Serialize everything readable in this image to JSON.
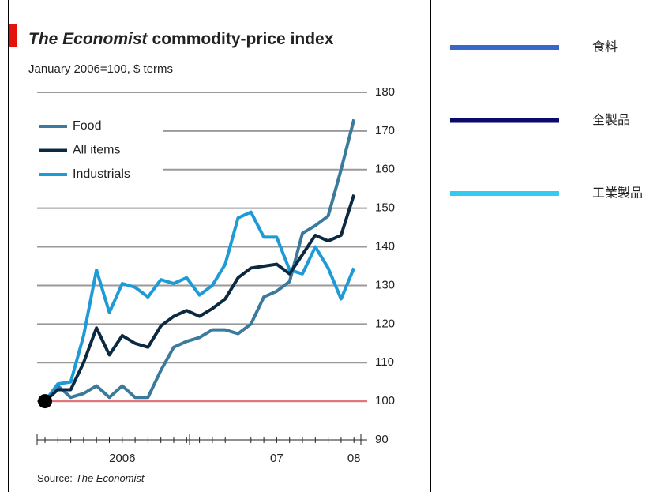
{
  "chart_data": {
    "type": "line",
    "title_parts": [
      "The Economist",
      "commodity-price index"
    ],
    "subtitle": "January 2006=100, $ terms",
    "source_parts": [
      "Source:",
      "The Economist"
    ],
    "categories": [
      null,
      null,
      null,
      null,
      null,
      null,
      "2006",
      null,
      null,
      null,
      null,
      null,
      null,
      null,
      null,
      null,
      null,
      null,
      "07",
      null,
      null,
      null,
      null,
      null,
      "08"
    ],
    "series": [
      {
        "name": "Food",
        "color": "#3a7a9c",
        "values": [
          100,
          104,
          101,
          102,
          104,
          101,
          104,
          101,
          101,
          108,
          114,
          115.5,
          116.5,
          118.5,
          118.5,
          117.5,
          120,
          127,
          128.5,
          131,
          143.5,
          145.5,
          148,
          160,
          173
        ]
      },
      {
        "name": "All items",
        "color": "#0b2a42",
        "values": [
          100,
          103,
          103,
          110,
          119,
          112,
          117,
          115,
          114,
          119.5,
          122,
          123.5,
          122,
          124,
          126.5,
          132,
          134.5,
          135,
          135.5,
          133,
          138,
          143,
          141.5,
          143,
          153.5
        ]
      },
      {
        "name": "Industrials",
        "color": "#1e9ad6",
        "values": [
          100,
          104.5,
          105,
          117,
          134,
          123,
          130.5,
          129.5,
          127,
          131.5,
          130.5,
          132,
          127.5,
          130,
          135.5,
          147.5,
          149,
          142.5,
          142.5,
          134,
          133,
          140,
          134.5,
          126.5,
          134.5
        ]
      }
    ],
    "ylim": [
      90,
      180
    ],
    "yticks": [
      90,
      100,
      110,
      120,
      130,
      140,
      150,
      160,
      170,
      180
    ],
    "baseline": 100,
    "baseline_color": "#e8707a",
    "grid": true,
    "legend": "upper left"
  },
  "side_legend": [
    {
      "label": "食料",
      "color": "#3a66c8"
    },
    {
      "label": "全製品",
      "color": "#0a0a6a"
    },
    {
      "label": "工業製品",
      "color": "#33ccf0"
    }
  ]
}
